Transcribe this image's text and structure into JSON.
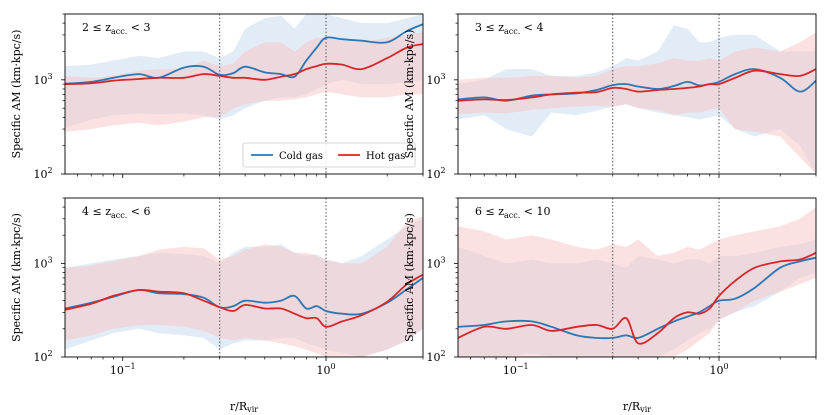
{
  "colors": {
    "cold": "#2c77b4",
    "hot": "#d62728",
    "cold_band": "#c9ddf0",
    "hot_band": "#f7c9c9"
  },
  "legend": {
    "cold_label": "Cold gas",
    "hot_label": "Hot gas"
  },
  "xlabel": "r/R",
  "xlabel_sub": "vir",
  "ylabel": "Specific AM (km·kpc/s)",
  "chart_data": [
    {
      "type": "line",
      "label": "2 ≤ z",
      "label_sub": "acc.",
      "label_tail": "< 3",
      "xscale": "log",
      "yscale": "log",
      "xlim": [
        0.052,
        3.0
      ],
      "ylim": [
        100,
        5000
      ],
      "xticks": [
        {
          "v": 0.1,
          "b": "10",
          "e": "−1"
        },
        {
          "v": 1,
          "b": "10",
          "e": "0"
        }
      ],
      "yticks": [
        {
          "v": 100,
          "b": "10",
          "e": "2"
        },
        {
          "v": 1000,
          "b": "10",
          "e": "3"
        }
      ],
      "vlines": [
        0.3,
        1.0
      ],
      "x": [
        0.052,
        0.07,
        0.09,
        0.12,
        0.15,
        0.2,
        0.25,
        0.3,
        0.35,
        0.4,
        0.5,
        0.6,
        0.7,
        0.8,
        0.9,
        1.0,
        1.2,
        1.5,
        2.0,
        2.5,
        3.0
      ],
      "series": [
        {
          "name": "Cold gas",
          "values": [
            910,
            950,
            1050,
            1150,
            1050,
            1350,
            1380,
            1130,
            1180,
            1380,
            1200,
            1150,
            1080,
            1600,
            2200,
            2800,
            2700,
            2600,
            2500,
            3300,
            3900
          ],
          "lower": [
            310,
            380,
            420,
            440,
            430,
            440,
            420,
            380,
            420,
            500,
            600,
            650,
            650,
            700,
            800,
            900,
            1000,
            900,
            900,
            950,
            1000
          ],
          "upper": [
            1400,
            1450,
            1600,
            1800,
            1700,
            2000,
            2000,
            1700,
            2000,
            3500,
            4500,
            4800,
            3500,
            5000,
            5000,
            5000,
            4500,
            4000,
            4000,
            4500,
            5000
          ]
        },
        {
          "name": "Hot gas",
          "values": [
            900,
            920,
            980,
            1020,
            1050,
            1050,
            1150,
            1100,
            1050,
            1050,
            1000,
            1080,
            1150,
            1300,
            1400,
            1480,
            1450,
            1300,
            1700,
            2200,
            2400
          ],
          "lower": [
            280,
            300,
            330,
            350,
            330,
            360,
            400,
            400,
            500,
            550,
            600,
            600,
            620,
            650,
            700,
            750,
            700,
            650,
            650,
            700,
            700
          ],
          "upper": [
            1100,
            1050,
            1100,
            1250,
            1300,
            1300,
            1600,
            1400,
            1500,
            2000,
            2500,
            2500,
            2000,
            2500,
            2800,
            2800,
            2600,
            2500,
            2800,
            3000,
            3200
          ]
        }
      ],
      "show_legend": true
    },
    {
      "type": "line",
      "label": "3 ≤ z",
      "label_sub": "acc.",
      "label_tail": "< 4",
      "xscale": "log",
      "yscale": "log",
      "xlim": [
        0.052,
        3.0
      ],
      "ylim": [
        100,
        5000
      ],
      "xticks": [
        {
          "v": 0.1,
          "b": "10",
          "e": "−1"
        },
        {
          "v": 1,
          "b": "10",
          "e": "0"
        }
      ],
      "yticks": [
        {
          "v": 100,
          "b": "10",
          "e": "2"
        },
        {
          "v": 1000,
          "b": "10",
          "e": "3"
        }
      ],
      "vlines": [
        0.3,
        1.0
      ],
      "x": [
        0.052,
        0.07,
        0.09,
        0.12,
        0.15,
        0.2,
        0.25,
        0.3,
        0.35,
        0.4,
        0.5,
        0.6,
        0.7,
        0.8,
        0.9,
        1.0,
        1.2,
        1.5,
        2.0,
        2.5,
        3.0
      ],
      "series": [
        {
          "name": "Cold gas",
          "values": [
            620,
            650,
            600,
            680,
            700,
            720,
            780,
            880,
            900,
            850,
            800,
            860,
            950,
            870,
            900,
            950,
            1150,
            1300,
            1050,
            750,
            980
          ],
          "lower": [
            380,
            420,
            300,
            250,
            450,
            420,
            470,
            520,
            550,
            500,
            450,
            420,
            400,
            380,
            400,
            420,
            300,
            250,
            300,
            200,
            100
          ],
          "upper": [
            900,
            1000,
            1300,
            1300,
            1100,
            1100,
            1200,
            1400,
            1700,
            1600,
            2000,
            3800,
            3500,
            2500,
            2500,
            2800,
            3000,
            3000,
            2000,
            2000,
            2000
          ]
        },
        {
          "name": "Hot gas",
          "values": [
            600,
            620,
            610,
            650,
            700,
            730,
            740,
            820,
            800,
            750,
            780,
            800,
            820,
            850,
            900,
            900,
            1050,
            1250,
            1150,
            1100,
            1300
          ],
          "lower": [
            430,
            450,
            440,
            480,
            500,
            520,
            530,
            520,
            550,
            500,
            480,
            420,
            450,
            450,
            480,
            500,
            300,
            280,
            250,
            150,
            100
          ],
          "upper": [
            1000,
            1050,
            1050,
            1100,
            1100,
            1050,
            1100,
            1300,
            1400,
            1400,
            1500,
            1700,
            1600,
            1600,
            1700,
            1600,
            2000,
            2200,
            2000,
            2500,
            3200
          ]
        }
      ],
      "show_legend": false
    },
    {
      "type": "line",
      "label": "4 ≤ z",
      "label_sub": "acc.",
      "label_tail": "< 6",
      "xscale": "log",
      "yscale": "log",
      "xlim": [
        0.052,
        3.0
      ],
      "ylim": [
        100,
        5000
      ],
      "xticks": [
        {
          "v": 0.1,
          "b": "10",
          "e": "−1"
        },
        {
          "v": 1,
          "b": "10",
          "e": "0"
        }
      ],
      "yticks": [
        {
          "v": 100,
          "b": "10",
          "e": "2"
        },
        {
          "v": 1000,
          "b": "10",
          "e": "3"
        }
      ],
      "vlines": [
        0.3,
        1.0
      ],
      "x": [
        0.052,
        0.07,
        0.09,
        0.12,
        0.15,
        0.2,
        0.25,
        0.3,
        0.35,
        0.4,
        0.5,
        0.6,
        0.7,
        0.8,
        0.9,
        1.0,
        1.2,
        1.5,
        2.0,
        2.5,
        3.0
      ],
      "series": [
        {
          "name": "Cold gas",
          "values": [
            330,
            380,
            440,
            520,
            480,
            470,
            430,
            340,
            350,
            400,
            380,
            400,
            450,
            330,
            350,
            310,
            290,
            290,
            380,
            530,
            700
          ],
          "lower": [
            120,
            150,
            180,
            200,
            180,
            170,
            160,
            120,
            140,
            150,
            150,
            160,
            160,
            140,
            130,
            120,
            110,
            100,
            120,
            150,
            200
          ],
          "upper": [
            900,
            1000,
            1100,
            1200,
            1300,
            1250,
            1200,
            1000,
            1300,
            1500,
            1500,
            1600,
            1300,
            1200,
            1250,
            1100,
            1000,
            1200,
            1800,
            2500,
            3000
          ]
        },
        {
          "name": "Hot gas",
          "values": [
            320,
            370,
            450,
            520,
            500,
            480,
            400,
            340,
            310,
            360,
            330,
            330,
            290,
            260,
            260,
            210,
            240,
            280,
            390,
            600,
            760
          ],
          "lower": [
            150,
            170,
            200,
            220,
            220,
            210,
            190,
            160,
            150,
            160,
            150,
            140,
            130,
            120,
            110,
            100,
            100,
            100,
            120,
            150,
            200
          ],
          "upper": [
            900,
            950,
            1050,
            1200,
            1400,
            1500,
            1450,
            1100,
            1200,
            1400,
            1600,
            1500,
            1300,
            1300,
            1200,
            1100,
            1000,
            1000,
            1500,
            2800,
            3200
          ]
        }
      ],
      "show_legend": false
    },
    {
      "type": "line",
      "label": "6 ≤ z",
      "label_sub": "acc.",
      "label_tail": "< 10",
      "xscale": "log",
      "yscale": "log",
      "xlim": [
        0.052,
        3.0
      ],
      "ylim": [
        100,
        5000
      ],
      "xticks": [
        {
          "v": 0.1,
          "b": "10",
          "e": "−1"
        },
        {
          "v": 1,
          "b": "10",
          "e": "0"
        }
      ],
      "yticks": [
        {
          "v": 100,
          "b": "10",
          "e": "2"
        },
        {
          "v": 1000,
          "b": "10",
          "e": "3"
        }
      ],
      "vlines": [
        0.3,
        1.0
      ],
      "x": [
        0.052,
        0.07,
        0.09,
        0.12,
        0.15,
        0.2,
        0.25,
        0.3,
        0.35,
        0.4,
        0.5,
        0.6,
        0.7,
        0.8,
        0.9,
        1.0,
        1.2,
        1.5,
        2.0,
        2.5,
        3.0
      ],
      "series": [
        {
          "name": "Cold gas",
          "values": [
            210,
            220,
            240,
            240,
            210,
            170,
            160,
            160,
            170,
            160,
            200,
            240,
            270,
            300,
            350,
            400,
            420,
            550,
            900,
            1050,
            1150
          ],
          "lower": [
            100,
            100,
            100,
            110,
            100,
            100,
            100,
            100,
            100,
            100,
            100,
            120,
            150,
            180,
            200,
            250,
            300,
            350,
            500,
            700,
            800
          ],
          "upper": [
            1500,
            1200,
            1000,
            1100,
            1000,
            1000,
            1100,
            1000,
            900,
            1200,
            1100,
            1000,
            1100,
            1100,
            1000,
            1200,
            1200,
            1300,
            1500,
            1600,
            1800
          ]
        },
        {
          "name": "Hot gas",
          "values": [
            160,
            210,
            200,
            220,
            190,
            210,
            220,
            200,
            260,
            140,
            180,
            260,
            300,
            290,
            330,
            450,
            650,
            900,
            1050,
            1100,
            1300
          ],
          "lower": [
            100,
            100,
            100,
            100,
            100,
            100,
            100,
            100,
            100,
            100,
            100,
            100,
            120,
            150,
            180,
            250,
            300,
            400,
            500,
            600,
            700
          ],
          "upper": [
            2500,
            2200,
            1800,
            2000,
            1800,
            1500,
            1400,
            1600,
            1500,
            1800,
            1200,
            1300,
            1500,
            1400,
            1600,
            1800,
            2000,
            2200,
            2500,
            3000,
            4000
          ]
        }
      ],
      "show_legend": false
    }
  ]
}
